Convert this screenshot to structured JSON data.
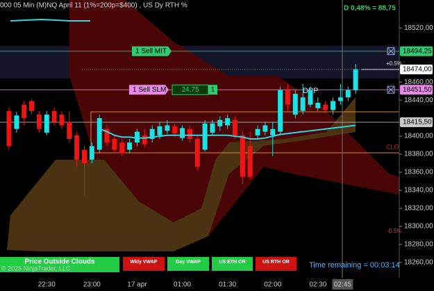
{
  "chart_data": {
    "type": "candlestick",
    "title": "000 05 Min (M)NQ  April 11 (1%=200p=$400) , US Dy RTH %",
    "subtitle": "D 0,48% = 88,75",
    "categories": [
      null,
      null,
      null,
      null,
      null,
      "22:30",
      null,
      null,
      null,
      null,
      null,
      "23:00",
      null,
      null,
      null,
      null,
      null,
      "17 apr",
      null,
      null,
      null,
      null,
      null,
      "01:00",
      null,
      null,
      null,
      null,
      null,
      "01:30",
      null,
      null,
      null,
      null,
      null,
      "02:00",
      null,
      null,
      null,
      null,
      null,
      "02:30",
      null,
      null,
      "02:45",
      null,
      null
    ],
    "open": [
      18428,
      18408,
      18435,
      18439,
      18424,
      18404,
      18428,
      18424,
      18416,
      18401,
      18385,
      18374,
      18385,
      18408,
      18397,
      18393,
      18385,
      18393,
      18401,
      18397,
      18401,
      18406,
      18411,
      18398,
      18408,
      18397,
      18385,
      18404,
      18411,
      18412,
      18418,
      18401,
      18389,
      18401,
      18405,
      18401,
      18405,
      18451,
      18424,
      18428,
      18435,
      18431,
      18435,
      18429,
      18439,
      18443,
      18451
    ],
    "high": [
      18432,
      18427,
      18439,
      18441,
      18428,
      18428,
      18432,
      18428,
      18428,
      18405,
      18389,
      18393,
      18424,
      18412,
      18401,
      18397,
      18397,
      18408,
      18408,
      18412,
      18416,
      18418,
      18414,
      18412,
      18412,
      18401,
      18418,
      18418,
      18422,
      18424,
      18422,
      18405,
      18405,
      18412,
      18416,
      18416,
      18455,
      18458,
      18451,
      18458,
      18455,
      18443,
      18439,
      18443,
      18458,
      18455,
      18480
    ],
    "low": [
      18385,
      18404,
      18412,
      18424,
      18404,
      18401,
      18412,
      18408,
      18393,
      18366,
      18335,
      18370,
      18381,
      18389,
      18381,
      18378,
      18381,
      18389,
      18388,
      18393,
      18397,
      18403,
      18399,
      18395,
      18393,
      18362,
      18383,
      18401,
      18406,
      18408,
      18397,
      18347,
      18352,
      18397,
      18401,
      18378,
      18401,
      18428,
      18420,
      18424,
      18432,
      18428,
      18426,
      18424,
      18435,
      18439,
      18447
    ],
    "close": [
      18389,
      18423,
      18420,
      18428,
      18408,
      18424,
      18416,
      18412,
      18397,
      18374,
      18370,
      18389,
      18420,
      18393,
      18385,
      18381,
      18393,
      18405,
      18391,
      18408,
      18411,
      18412,
      18403,
      18409,
      18397,
      18366,
      18414,
      18414,
      18418,
      18420,
      18401,
      18355,
      18355,
      18408,
      18412,
      18408,
      18451,
      18435,
      18447,
      18443,
      18451,
      18437,
      18429,
      18439,
      18443,
      18451,
      18474
    ],
    "up_color": "#19e3e3",
    "down_color": "#ee1414",
    "overlay": {
      "color": "#2fd6e6",
      "values": [
        null,
        null,
        null,
        null,
        null,
        null,
        null,
        null,
        null,
        null,
        null,
        null,
        18408,
        18405,
        18401,
        18399,
        18399,
        18398,
        18398,
        18399,
        18400,
        18401,
        18401,
        18401,
        18401,
        18401,
        18401,
        18401,
        18401,
        18401,
        18400,
        18399,
        18397,
        18397,
        18398,
        18400,
        18402,
        18403,
        18404,
        18405,
        18406,
        18407,
        18408,
        18409,
        18410,
        18411,
        18412
      ]
    },
    "ylim": [
      18243,
      18551
    ],
    "yticks": [
      {
        "value": 18520,
        "label": "18520,00"
      },
      {
        "value": 18460,
        "label": "18460,00"
      },
      {
        "value": 18440,
        "label": "18440,00"
      },
      {
        "value": 18400,
        "label": "18400,00"
      },
      {
        "value": 18380,
        "label": "18380,00"
      },
      {
        "value": 18360,
        "label": "18360,00"
      },
      {
        "value": 18340,
        "label": "18340,00"
      },
      {
        "value": 18320,
        "label": "18320,00"
      },
      {
        "value": 18300,
        "label": "18300,00"
      },
      {
        "value": 18280,
        "label": "18280,00"
      },
      {
        "value": 18260,
        "label": "18260,00"
      }
    ],
    "price_lines": [
      {
        "value": 18494.25,
        "label": "18494,25",
        "color": "#2ecc71",
        "text_color": "#000000"
      },
      {
        "value": 18474,
        "label": "18474,00",
        "color": "#ffffff",
        "text_color": "#000000"
      },
      {
        "value": 18451.5,
        "label": "18451,50",
        "color": "#e58ae5",
        "text_color": "#000000"
      },
      {
        "value": 18415.5,
        "label": "18415,50",
        "color": "#c8c8c8",
        "text_color": "#000000"
      }
    ],
    "orders": [
      {
        "label": "1 Sell MIT",
        "color": "#2ecc71"
      },
      {
        "label": "1 Sell SLM",
        "color": "#e58ae5",
        "offset": "24,75",
        "quantity": "1"
      }
    ],
    "annotations": [
      "+0.5%",
      "-0.5%",
      "CLO",
      "DPP"
    ],
    "buttons": [
      {
        "label": "Price Outside Clouds",
        "color": "#22cc44"
      },
      {
        "label": "Wkly VWAP",
        "color": "#cc1111"
      },
      {
        "label": "Day VWAP",
        "color": "#22cc44"
      },
      {
        "label": "US ETH OR",
        "color": "#22cc44"
      },
      {
        "label": "US RTH OR",
        "color": "#cc1111"
      }
    ],
    "copyright": "© 2025 NinjaTrader, LLC",
    "status": "Time remaining = 00:03:14"
  }
}
